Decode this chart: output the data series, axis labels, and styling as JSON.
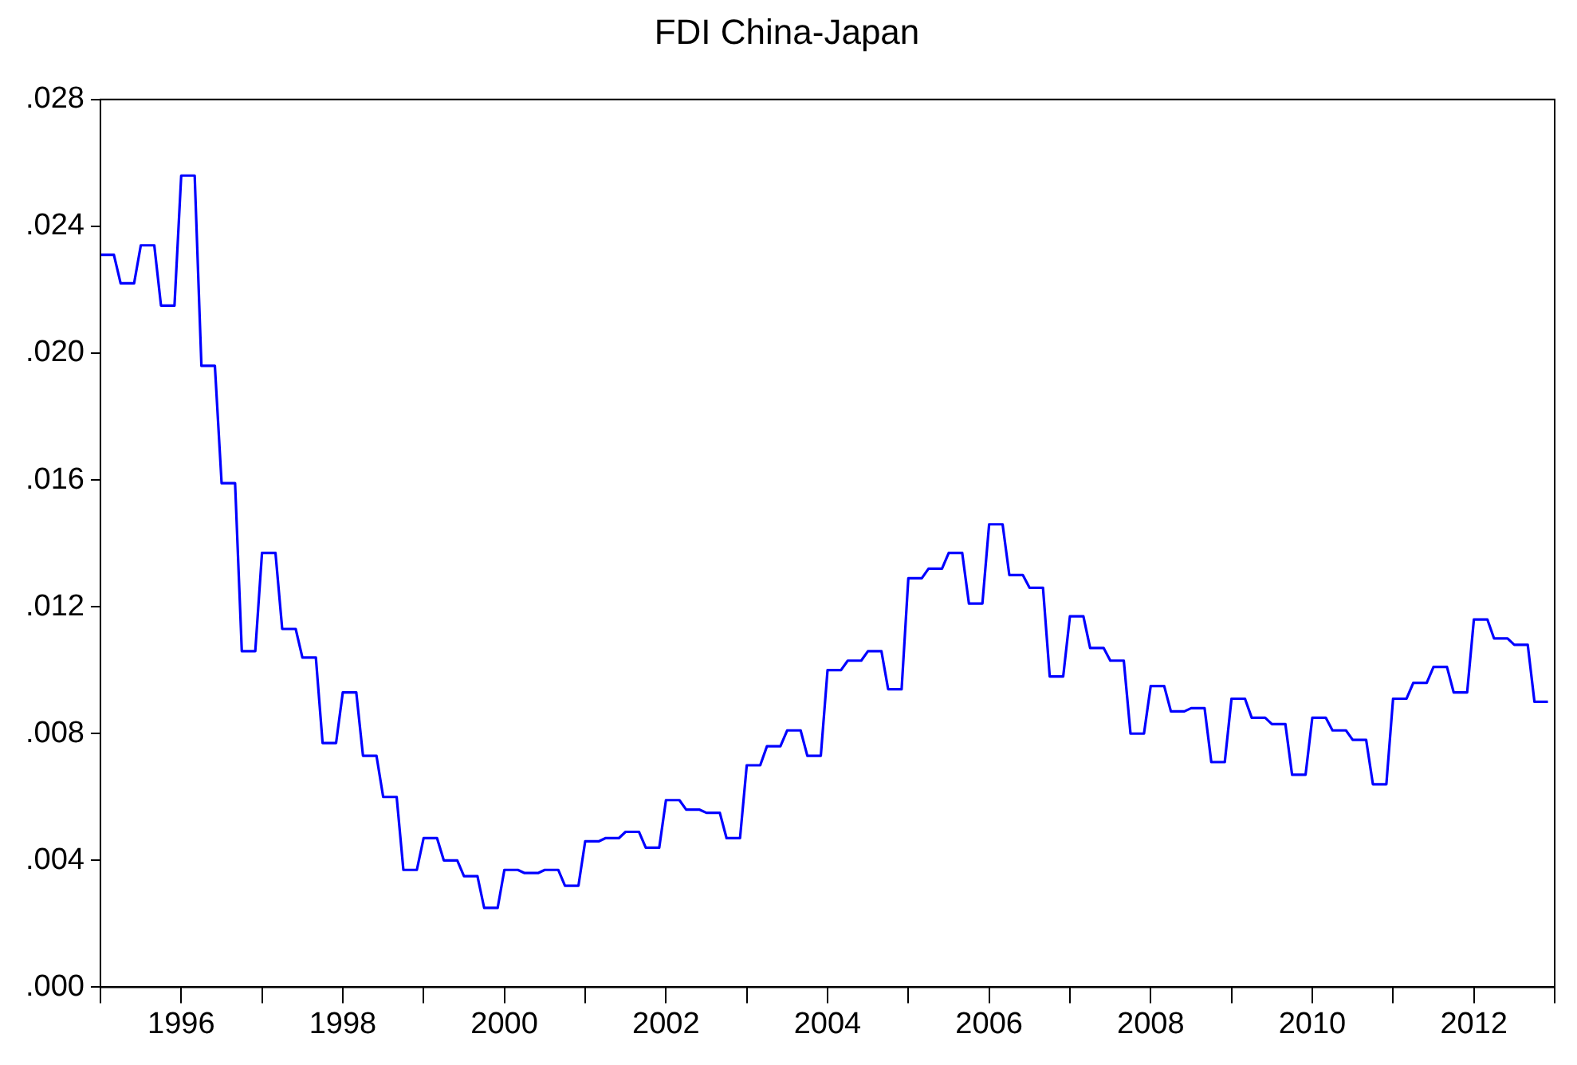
{
  "chart_data": {
    "type": "line",
    "title": "FDI China-Japan",
    "x": [
      "1995-01",
      "1995-03",
      "1995-04",
      "1995-06",
      "1995-07",
      "1995-09",
      "1995-10",
      "1995-12",
      "1996-01",
      "1996-03",
      "1996-04",
      "1996-06",
      "1996-07",
      "1996-09",
      "1996-10",
      "1996-12",
      "1997-01",
      "1997-03",
      "1997-04",
      "1997-06",
      "1997-07",
      "1997-09",
      "1997-10",
      "1997-12",
      "1998-01",
      "1998-03",
      "1998-04",
      "1998-06",
      "1998-07",
      "1998-09",
      "1998-10",
      "1998-12",
      "1999-01",
      "1999-03",
      "1999-04",
      "1999-06",
      "1999-07",
      "1999-09",
      "1999-10",
      "1999-12",
      "2000-01",
      "2000-03",
      "2000-04",
      "2000-06",
      "2000-07",
      "2000-09",
      "2000-10",
      "2000-12",
      "2001-01",
      "2001-03",
      "2001-04",
      "2001-06",
      "2001-07",
      "2001-09",
      "2001-10",
      "2001-12",
      "2002-01",
      "2002-03",
      "2002-04",
      "2002-06",
      "2002-07",
      "2002-09",
      "2002-10",
      "2002-12",
      "2003-01",
      "2003-03",
      "2003-04",
      "2003-06",
      "2003-07",
      "2003-09",
      "2003-10",
      "2003-12",
      "2004-01",
      "2004-03",
      "2004-04",
      "2004-06",
      "2004-07",
      "2004-09",
      "2004-10",
      "2004-12",
      "2005-01",
      "2005-03",
      "2005-04",
      "2005-06",
      "2005-07",
      "2005-09",
      "2005-10",
      "2005-12",
      "2006-01",
      "2006-03",
      "2006-04",
      "2006-06",
      "2006-07",
      "2006-09",
      "2006-10",
      "2006-12",
      "2007-01",
      "2007-03",
      "2007-04",
      "2007-06",
      "2007-07",
      "2007-09",
      "2007-10",
      "2007-12",
      "2008-01",
      "2008-03",
      "2008-04",
      "2008-06",
      "2008-07",
      "2008-09",
      "2008-10",
      "2008-12",
      "2009-01",
      "2009-03",
      "2009-04",
      "2009-06",
      "2009-07",
      "2009-09",
      "2009-10",
      "2009-12",
      "2010-01",
      "2010-03",
      "2010-04",
      "2010-06",
      "2010-07",
      "2010-09",
      "2010-10",
      "2010-12",
      "2011-01",
      "2011-03",
      "2011-04",
      "2011-06",
      "2011-07",
      "2011-09",
      "2011-10",
      "2011-12",
      "2012-01",
      "2012-03",
      "2012-04",
      "2012-06",
      "2012-07",
      "2012-09",
      "2012-10",
      "2012-12"
    ],
    "series": [
      {
        "color": "#0000ff",
        "values": [
          0.0231,
          0.0231,
          0.0222,
          0.0222,
          0.0234,
          0.0234,
          0.0215,
          0.0215,
          0.0256,
          0.0256,
          0.0196,
          0.0196,
          0.0159,
          0.0159,
          0.0106,
          0.0106,
          0.0137,
          0.0137,
          0.0113,
          0.0113,
          0.0104,
          0.0104,
          0.0077,
          0.0077,
          0.0093,
          0.0093,
          0.0073,
          0.0073,
          0.006,
          0.006,
          0.0037,
          0.0037,
          0.0047,
          0.0047,
          0.004,
          0.004,
          0.0035,
          0.0035,
          0.0025,
          0.0025,
          0.0037,
          0.0037,
          0.0036,
          0.0036,
          0.0037,
          0.0037,
          0.0032,
          0.0032,
          0.0046,
          0.0046,
          0.0047,
          0.0047,
          0.0049,
          0.0049,
          0.0044,
          0.0044,
          0.0059,
          0.0059,
          0.0056,
          0.0056,
          0.0055,
          0.0055,
          0.0047,
          0.0047,
          0.007,
          0.007,
          0.0076,
          0.0076,
          0.0081,
          0.0081,
          0.0073,
          0.0073,
          0.01,
          0.01,
          0.0103,
          0.0103,
          0.0106,
          0.0106,
          0.0094,
          0.0094,
          0.0129,
          0.0129,
          0.0132,
          0.0132,
          0.0137,
          0.0137,
          0.0121,
          0.0121,
          0.0146,
          0.0146,
          0.013,
          0.013,
          0.0126,
          0.0126,
          0.0098,
          0.0098,
          0.0117,
          0.0117,
          0.0107,
          0.0107,
          0.0103,
          0.0103,
          0.008,
          0.008,
          0.0095,
          0.0095,
          0.0087,
          0.0087,
          0.0088,
          0.0088,
          0.0071,
          0.0071,
          0.0091,
          0.0091,
          0.0085,
          0.0085,
          0.0083,
          0.0083,
          0.0067,
          0.0067,
          0.0085,
          0.0085,
          0.0081,
          0.0081,
          0.0078,
          0.0078,
          0.0064,
          0.0064,
          0.0091,
          0.0091,
          0.0096,
          0.0096,
          0.0101,
          0.0101,
          0.0093,
          0.0093,
          0.0116,
          0.0116,
          0.011,
          0.011,
          0.0108,
          0.0108,
          0.009,
          0.009
        ]
      }
    ],
    "xlim": [
      "1995-01",
      "2013-01"
    ],
    "xticks": [
      {
        "value": "1995",
        "label": null
      },
      "1996",
      {
        "value": "1997",
        "label": null
      },
      "1998",
      {
        "value": "1999",
        "label": null
      },
      "2000",
      {
        "value": "2001",
        "label": null
      },
      "2002",
      {
        "value": "2003",
        "label": null
      },
      "2004",
      {
        "value": "2005",
        "label": null
      },
      "2006",
      {
        "value": "2007",
        "label": null
      },
      "2008",
      {
        "value": "2009",
        "label": null
      },
      "2010",
      {
        "value": "2011",
        "label": null
      },
      "2012",
      {
        "value": "2013",
        "label": null
      }
    ],
    "ylim": [
      0,
      0.028
    ],
    "yticks": [
      {
        "value": 0,
        "label": ".000"
      },
      {
        "value": 0.004,
        "label": ".004"
      },
      {
        "value": 0.008,
        "label": ".008"
      },
      {
        "value": 0.012,
        "label": ".012"
      },
      {
        "value": 0.016,
        "label": ".016"
      },
      {
        "value": 0.02,
        "label": ".020"
      },
      {
        "value": 0.024,
        "label": ".024"
      },
      {
        "value": 0.028,
        "label": ".028"
      }
    ],
    "grid": false,
    "legend": false,
    "marker": "none",
    "line_style": "solid"
  }
}
